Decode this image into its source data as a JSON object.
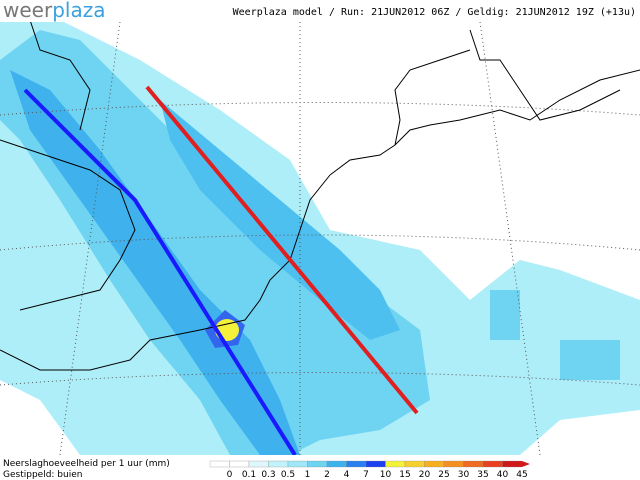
{
  "logo": {
    "part1": "weer",
    "part2": "plaza"
  },
  "header": {
    "text": "Weerplaza model  /  Run: 21JUN2012 06Z  /  Geldig: 21JUN2012 19Z (+13u)"
  },
  "legend": {
    "title": "Neerslaghoeveelheid per 1 uur (mm)",
    "subtitle": "Gestippeld: buien",
    "ticks": [
      "0",
      "0.1",
      "0.3",
      "0.5",
      "1",
      "2",
      "4",
      "7",
      "10",
      "15",
      "20",
      "25",
      "30",
      "35",
      "40",
      "45"
    ]
  }
}
